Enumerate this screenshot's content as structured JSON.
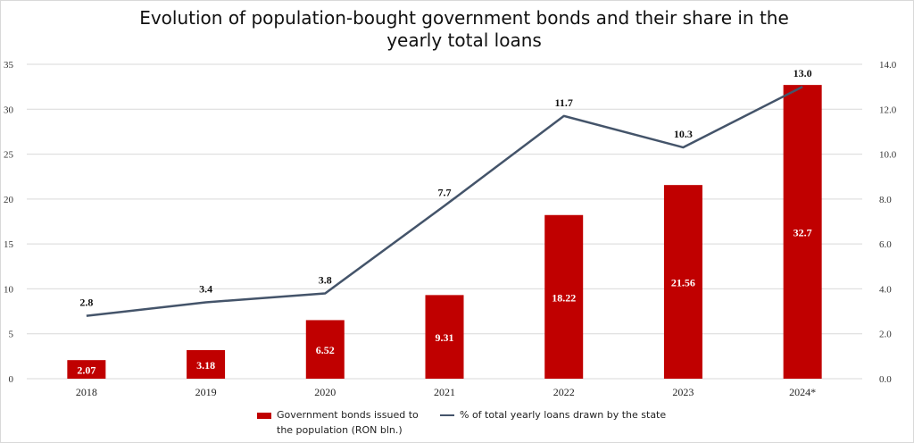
{
  "chart_data": {
    "type": "bar",
    "title": "Evolution of population-bought government bonds and their share in the yearly total loans",
    "categories": [
      "2018",
      "2019",
      "2020",
      "2021",
      "2022",
      "2023",
      "2024*"
    ],
    "series": [
      {
        "name": "Government bonds issued to the population (RON bln.)",
        "type": "bar",
        "axis": "left",
        "color": "#c00000",
        "values": [
          2.07,
          3.18,
          6.52,
          9.31,
          18.22,
          21.56,
          32.7
        ],
        "labels": [
          "2.07",
          "3.18",
          "6.52",
          "9.31",
          "18.22",
          "21.56",
          "32.7"
        ]
      },
      {
        "name": "% of total yearly loans drawn by the state",
        "type": "line",
        "axis": "right",
        "color": "#44546a",
        "values": [
          2.8,
          3.4,
          3.8,
          7.7,
          11.7,
          10.3,
          13.0
        ],
        "labels": [
          "2.8",
          "3.4",
          "3.8",
          "7.7",
          "11.7",
          "10.3",
          "13.0"
        ]
      }
    ],
    "y_left": {
      "min": 0,
      "max": 35,
      "ticks": [
        "0",
        "5",
        "10",
        "15",
        "20",
        "25",
        "30",
        "35"
      ]
    },
    "y_right": {
      "min": 0,
      "max": 14,
      "ticks": [
        "0.0",
        "2.0",
        "4.0",
        "6.0",
        "8.0",
        "10.0",
        "12.0",
        "14.0"
      ]
    },
    "grid": true,
    "legend_position": "bottom"
  },
  "legend": {
    "bar_line1": "Government bonds issued to",
    "bar_line2": "the population (RON bln.)",
    "line_label": "% of total yearly loans drawn by the state"
  }
}
